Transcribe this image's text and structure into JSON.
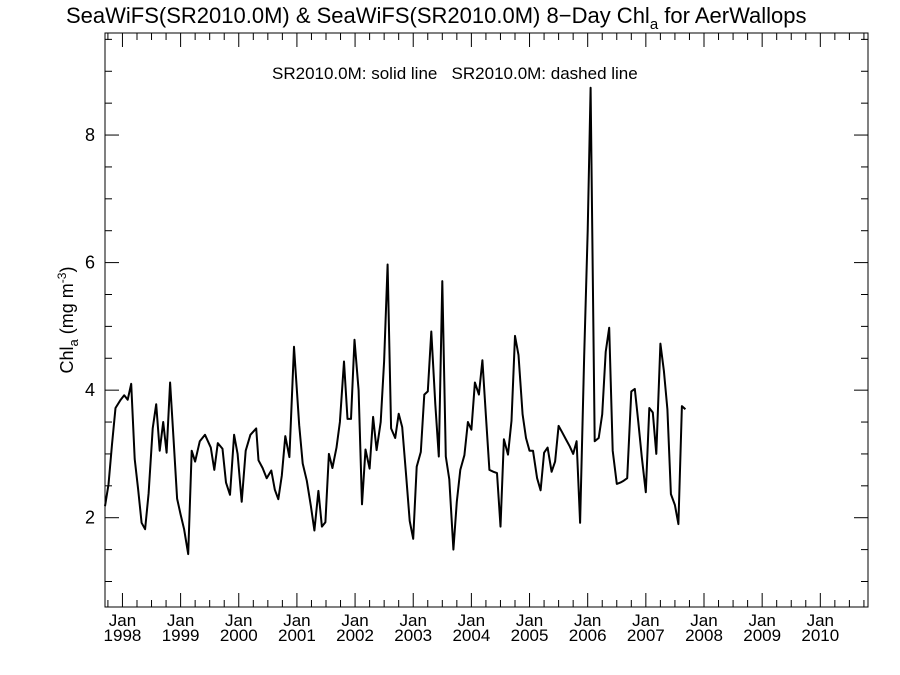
{
  "chart_data": {
    "type": "line",
    "title": {
      "prefix": "SeaWiFS(SR2010.0M) & SeaWiFS(SR2010.0M) 8−Day Chl",
      "subscript": "a",
      "suffix": " for AerWallops"
    },
    "annotation": "SR2010.0M: solid line   SR2010.0M: dashed line",
    "ylabel": {
      "prefix": "Chl",
      "subscript": "a",
      "middle": " (mg m",
      "superscript": "-3",
      "suffix": ")"
    },
    "xlabel": "",
    "xlim": [
      1997.7,
      2010.82
    ],
    "ylim": [
      0.6,
      9.6
    ],
    "y_ticks": [
      2,
      4,
      6,
      8
    ],
    "x_ticks": [
      {
        "year": 1998,
        "month": "Jan",
        "label": "1998"
      },
      {
        "year": 1999,
        "month": "Jan",
        "label": "1999"
      },
      {
        "year": 2000,
        "month": "Jan",
        "label": "2000"
      },
      {
        "year": 2001,
        "month": "Jan",
        "label": "2001"
      },
      {
        "year": 2002,
        "month": "Jan",
        "label": "2002"
      },
      {
        "year": 2003,
        "month": "Jan",
        "label": "2003"
      },
      {
        "year": 2004,
        "month": "Jan",
        "label": "2004"
      },
      {
        "year": 2005,
        "month": "Jan",
        "label": "2005"
      },
      {
        "year": 2006,
        "month": "Jan",
        "label": "2006"
      },
      {
        "year": 2007,
        "month": "Jan",
        "label": "2007"
      },
      {
        "year": 2008,
        "month": "Jan",
        "label": "2008"
      },
      {
        "year": 2009,
        "month": "Jan",
        "label": "2009"
      },
      {
        "year": 2010,
        "month": "Jan",
        "label": "2010"
      }
    ],
    "grid": false,
    "series": [
      {
        "style": "solid",
        "color": "#000000",
        "points": [
          [
            1997.7,
            2.18
          ],
          [
            1997.76,
            2.52
          ],
          [
            1997.82,
            3.15
          ],
          [
            1997.88,
            3.72
          ],
          [
            1997.97,
            3.85
          ],
          [
            1998.03,
            3.92
          ],
          [
            1998.09,
            3.85
          ],
          [
            1998.15,
            4.1
          ],
          [
            1998.21,
            2.92
          ],
          [
            1998.27,
            2.45
          ],
          [
            1998.33,
            1.92
          ],
          [
            1998.39,
            1.82
          ],
          [
            1998.45,
            2.38
          ],
          [
            1998.52,
            3.4
          ],
          [
            1998.58,
            3.78
          ],
          [
            1998.64,
            3.05
          ],
          [
            1998.7,
            3.5
          ],
          [
            1998.76,
            3.02
          ],
          [
            1998.82,
            4.12
          ],
          [
            1998.88,
            3.22
          ],
          [
            1998.94,
            2.3
          ],
          [
            1999.0,
            2.05
          ],
          [
            1999.06,
            1.82
          ],
          [
            1999.13,
            1.43
          ],
          [
            1999.19,
            3.05
          ],
          [
            1999.25,
            2.88
          ],
          [
            1999.33,
            3.2
          ],
          [
            1999.42,
            3.3
          ],
          [
            1999.52,
            3.1
          ],
          [
            1999.58,
            2.75
          ],
          [
            1999.64,
            3.17
          ],
          [
            1999.72,
            3.08
          ],
          [
            1999.78,
            2.55
          ],
          [
            1999.85,
            2.36
          ],
          [
            1999.92,
            3.3
          ],
          [
            1999.98,
            3.0
          ],
          [
            2000.05,
            2.25
          ],
          [
            2000.12,
            3.05
          ],
          [
            2000.2,
            3.3
          ],
          [
            2000.3,
            3.4
          ],
          [
            2000.34,
            2.9
          ],
          [
            2000.41,
            2.78
          ],
          [
            2000.48,
            2.62
          ],
          [
            2000.56,
            2.74
          ],
          [
            2000.62,
            2.44
          ],
          [
            2000.68,
            2.29
          ],
          [
            2000.74,
            2.66
          ],
          [
            2000.8,
            3.28
          ],
          [
            2000.87,
            2.95
          ],
          [
            2000.95,
            4.68
          ],
          [
            2001.04,
            3.45
          ],
          [
            2001.1,
            2.85
          ],
          [
            2001.17,
            2.58
          ],
          [
            2001.24,
            2.18
          ],
          [
            2001.3,
            1.8
          ],
          [
            2001.37,
            2.42
          ],
          [
            2001.43,
            1.86
          ],
          [
            2001.49,
            1.93
          ],
          [
            2001.55,
            3.0
          ],
          [
            2001.61,
            2.78
          ],
          [
            2001.68,
            3.1
          ],
          [
            2001.74,
            3.5
          ],
          [
            2001.81,
            4.45
          ],
          [
            2001.87,
            3.55
          ],
          [
            2001.93,
            3.55
          ],
          [
            2001.99,
            4.79
          ],
          [
            2002.06,
            4.0
          ],
          [
            2002.12,
            2.21
          ],
          [
            2002.18,
            3.07
          ],
          [
            2002.25,
            2.77
          ],
          [
            2002.31,
            3.58
          ],
          [
            2002.37,
            3.06
          ],
          [
            2002.44,
            3.5
          ],
          [
            2002.5,
            4.45
          ],
          [
            2002.56,
            5.97
          ],
          [
            2002.62,
            3.4
          ],
          [
            2002.69,
            3.25
          ],
          [
            2002.75,
            3.63
          ],
          [
            2002.81,
            3.42
          ],
          [
            2002.88,
            2.65
          ],
          [
            2002.94,
            1.95
          ],
          [
            2003.0,
            1.67
          ],
          [
            2003.06,
            2.8
          ],
          [
            2003.13,
            3.03
          ],
          [
            2003.19,
            3.93
          ],
          [
            2003.25,
            3.98
          ],
          [
            2003.31,
            4.92
          ],
          [
            2003.38,
            3.78
          ],
          [
            2003.44,
            2.96
          ],
          [
            2003.5,
            5.71
          ],
          [
            2003.56,
            2.96
          ],
          [
            2003.62,
            2.6
          ],
          [
            2003.69,
            1.5
          ],
          [
            2003.75,
            2.25
          ],
          [
            2003.81,
            2.75
          ],
          [
            2003.88,
            2.98
          ],
          [
            2003.94,
            3.5
          ],
          [
            2004.0,
            3.38
          ],
          [
            2004.06,
            4.12
          ],
          [
            2004.13,
            3.93
          ],
          [
            2004.19,
            4.47
          ],
          [
            2004.25,
            3.6
          ],
          [
            2004.31,
            2.75
          ],
          [
            2004.38,
            2.72
          ],
          [
            2004.44,
            2.7
          ],
          [
            2004.5,
            1.86
          ],
          [
            2004.56,
            3.23
          ],
          [
            2004.63,
            2.99
          ],
          [
            2004.69,
            3.52
          ],
          [
            2004.75,
            4.85
          ],
          [
            2004.81,
            4.55
          ],
          [
            2004.88,
            3.62
          ],
          [
            2004.94,
            3.25
          ],
          [
            2005.0,
            3.05
          ],
          [
            2005.06,
            3.05
          ],
          [
            2005.13,
            2.62
          ],
          [
            2005.19,
            2.43
          ],
          [
            2005.25,
            3.02
          ],
          [
            2005.31,
            3.1
          ],
          [
            2005.38,
            2.72
          ],
          [
            2005.44,
            2.88
          ],
          [
            2005.5,
            3.44
          ],
          [
            2005.56,
            3.34
          ],
          [
            2005.63,
            3.22
          ],
          [
            2005.69,
            3.12
          ],
          [
            2005.75,
            3.0
          ],
          [
            2005.81,
            3.2
          ],
          [
            2005.87,
            1.92
          ],
          [
            2005.94,
            4.55
          ],
          [
            2006.0,
            6.5
          ],
          [
            2006.05,
            8.74
          ],
          [
            2006.12,
            3.2
          ],
          [
            2006.19,
            3.25
          ],
          [
            2006.25,
            3.62
          ],
          [
            2006.31,
            4.6
          ],
          [
            2006.37,
            4.98
          ],
          [
            2006.43,
            3.05
          ],
          [
            2006.5,
            2.53
          ],
          [
            2006.56,
            2.55
          ],
          [
            2006.62,
            2.58
          ],
          [
            2006.68,
            2.62
          ],
          [
            2006.75,
            3.98
          ],
          [
            2006.81,
            4.02
          ],
          [
            2006.87,
            3.5
          ],
          [
            2006.93,
            2.95
          ],
          [
            2007.0,
            2.4
          ],
          [
            2007.06,
            3.72
          ],
          [
            2007.12,
            3.65
          ],
          [
            2007.18,
            3.0
          ],
          [
            2007.25,
            4.73
          ],
          [
            2007.31,
            4.3
          ],
          [
            2007.37,
            3.7
          ],
          [
            2007.43,
            2.37
          ],
          [
            2007.5,
            2.2
          ],
          [
            2007.56,
            1.9
          ],
          [
            2007.62,
            3.75
          ],
          [
            2007.68,
            3.7
          ]
        ]
      }
    ]
  }
}
